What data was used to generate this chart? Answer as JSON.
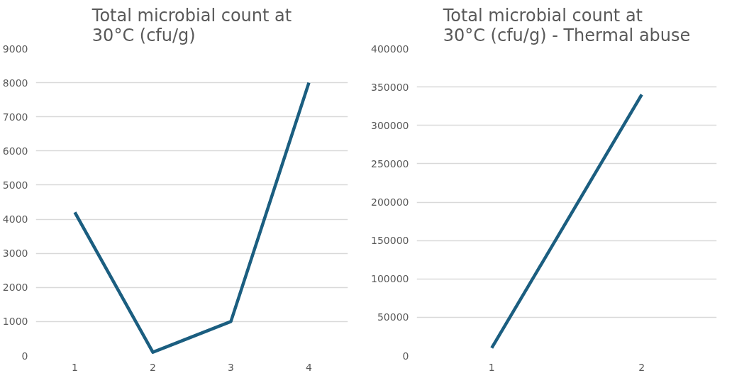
{
  "chart_data": [
    {
      "type": "line",
      "title": "Total microbial count at 30°C (cfu/g)",
      "categories": [
        "1",
        "2",
        "3",
        "4"
      ],
      "series": [
        {
          "color": "#1b5e80",
          "values": [
            4200,
            100,
            1000,
            8000
          ]
        }
      ],
      "ylim": [
        0,
        9000
      ],
      "yticks": [
        0,
        1000,
        2000,
        3000,
        4000,
        5000,
        6000,
        7000,
        8000,
        9000
      ],
      "grid": "y",
      "line_style": "solid"
    },
    {
      "type": "line",
      "title": "Total microbial count at 30°C (cfu/g) - Thermal abuse",
      "categories": [
        "1",
        "2"
      ],
      "series": [
        {
          "color": "#1b5e80",
          "values": [
            10000,
            340000
          ]
        }
      ],
      "ylim": [
        0,
        400000
      ],
      "yticks": [
        0,
        50000,
        100000,
        150000,
        200000,
        250000,
        300000,
        350000,
        400000
      ],
      "grid": "y",
      "line_style": "solid"
    }
  ]
}
